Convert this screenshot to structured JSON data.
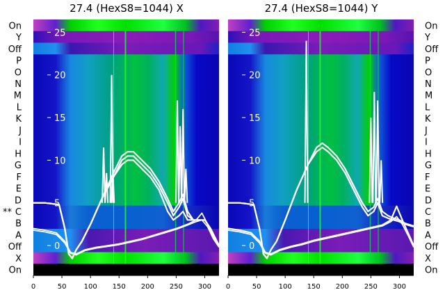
{
  "chart_data": [
    {
      "type": "heatmap",
      "title": "27.4 (HexS8=1044) X",
      "row_labels": [
        "On",
        "Y",
        "Off",
        "P",
        "O",
        "N",
        "M",
        "L",
        "K",
        "J",
        "I",
        "H",
        "G",
        "F",
        "E",
        "D",
        "C",
        "B",
        "A",
        "Off",
        "X",
        "On"
      ],
      "row_marker": {
        "row": "C",
        "text": "**"
      },
      "x_ticks": [
        0,
        50,
        100,
        150,
        200,
        250,
        300
      ],
      "xlim": [
        0,
        325
      ],
      "y_ticks": [
        25,
        20,
        15,
        10,
        5,
        0
      ],
      "ylim": [
        -3.5,
        26.5
      ],
      "series": [
        {
          "name": "",
          "x": [
            0,
            20,
            45,
            55,
            62,
            68,
            75,
            85,
            100,
            120,
            140,
            155,
            165,
            175,
            190,
            205,
            220,
            235,
            245,
            255,
            262,
            270,
            280,
            290,
            300,
            310,
            325
          ],
          "y": [
            5,
            5,
            4.8,
            2,
            -1,
            -1.5,
            -0.5,
            0.5,
            2.5,
            5.5,
            8,
            9.5,
            10,
            10,
            9,
            8,
            6.5,
            4,
            3,
            3.5,
            4,
            3,
            3,
            3,
            3,
            2,
            0
          ]
        },
        {
          "name": "",
          "x": [
            0,
            20,
            45,
            55,
            62,
            68,
            75,
            85,
            100,
            120,
            140,
            155,
            165,
            175,
            190,
            205,
            220,
            235,
            245,
            255,
            262,
            270,
            280,
            290,
            300,
            310,
            325
          ],
          "y": [
            5,
            5,
            4.8,
            2,
            -1,
            -1.5,
            -0.5,
            0.5,
            2.5,
            5.5,
            8,
            10,
            10.5,
            10.5,
            9.5,
            8.5,
            7,
            5,
            3.5,
            4.5,
            5.5,
            3.5,
            3,
            3,
            3,
            2,
            0
          ]
        },
        {
          "name": "",
          "x": [
            0,
            20,
            45,
            55,
            62,
            68,
            75,
            85,
            100,
            120,
            140,
            155,
            165,
            175,
            190,
            205,
            220,
            235,
            245,
            255,
            262,
            270,
            280,
            290,
            300,
            310,
            325
          ],
          "y": [
            5,
            5,
            4.8,
            2,
            -1,
            -1.5,
            -0.5,
            0.5,
            2.5,
            5.5,
            8.5,
            10.5,
            11,
            11,
            10,
            9,
            7.5,
            5.5,
            4,
            5,
            6,
            4,
            3,
            3,
            3,
            2,
            0
          ]
        },
        {
          "name": "",
          "x": [
            0,
            20,
            40,
            55,
            65,
            75,
            90,
            110,
            130,
            150,
            170,
            190,
            210,
            230,
            250,
            270,
            285,
            295,
            305,
            315,
            325
          ],
          "y": [
            2,
            1.8,
            1.5,
            0.5,
            -0.8,
            -1,
            -0.5,
            -0.2,
            0,
            0.2,
            0.5,
            0.8,
            1.2,
            1.6,
            2,
            2.5,
            3,
            3.8,
            2.5,
            1,
            0
          ]
        },
        {
          "name": "",
          "x": [
            0,
            20,
            40,
            55,
            65,
            75,
            90,
            110,
            130,
            150,
            170,
            190,
            210,
            230,
            250,
            270,
            285,
            295,
            305,
            315,
            325
          ],
          "y": [
            1.8,
            1.6,
            1.3,
            0.3,
            -0.9,
            -1.1,
            -0.6,
            -0.3,
            -0.1,
            0.1,
            0.4,
            0.7,
            1.1,
            1.5,
            1.9,
            2.4,
            2.8,
            3,
            2.2,
            0.8,
            -0.2
          ]
        }
      ],
      "spikes": [
        {
          "x": 123,
          "y": 11.5
        },
        {
          "x": 128,
          "y": 8.5
        },
        {
          "x": 137,
          "y": 20
        },
        {
          "x": 139,
          "y": 9
        },
        {
          "x": 252,
          "y": 17
        },
        {
          "x": 257,
          "y": 14
        },
        {
          "x": 262,
          "y": 16
        },
        {
          "x": 267,
          "y": 9
        }
      ]
    },
    {
      "type": "heatmap",
      "title": "27.4 (HexS8=1044) Y",
      "row_labels": [
        "On",
        "Y",
        "Off",
        "P",
        "O",
        "N",
        "M",
        "L",
        "K",
        "J",
        "I",
        "H",
        "G",
        "F",
        "E",
        "D",
        "C",
        "B",
        "A",
        "Off",
        "X",
        "On"
      ],
      "x_ticks": [
        0,
        50,
        100,
        150,
        200,
        250,
        300
      ],
      "xlim": [
        0,
        325
      ],
      "y_ticks": [
        25,
        20,
        15,
        10,
        5,
        0
      ],
      "ylim": [
        -3.5,
        26.5
      ],
      "series": [
        {
          "name": "",
          "x": [
            0,
            20,
            45,
            55,
            62,
            68,
            75,
            85,
            100,
            120,
            140,
            155,
            165,
            175,
            190,
            205,
            220,
            235,
            245,
            255,
            262,
            270,
            280,
            290,
            300,
            310,
            325
          ],
          "y": [
            5,
            5,
            4.8,
            2,
            -1,
            -1.5,
            -0.5,
            0.5,
            3,
            6.5,
            9.5,
            11,
            11.5,
            11,
            10,
            8.5,
            6.5,
            4.5,
            3.5,
            4,
            5,
            3.5,
            3.2,
            3,
            2.8,
            2.5,
            2.2
          ]
        },
        {
          "name": "",
          "x": [
            0,
            20,
            45,
            55,
            62,
            68,
            75,
            85,
            100,
            120,
            140,
            155,
            165,
            175,
            190,
            205,
            220,
            235,
            245,
            255,
            262,
            270,
            280,
            290,
            300,
            310,
            325
          ],
          "y": [
            5,
            5,
            4.8,
            2,
            -1,
            -1.5,
            -0.5,
            0.5,
            3,
            6.5,
            9.5,
            11.5,
            12,
            11.5,
            10.5,
            9,
            7,
            5,
            4,
            4.5,
            5.5,
            4,
            3.5,
            3.2,
            3,
            2.6,
            2.3
          ]
        },
        {
          "name": "",
          "x": [
            0,
            20,
            40,
            55,
            65,
            75,
            90,
            110,
            130,
            150,
            170,
            190,
            210,
            230,
            250,
            270,
            285,
            295,
            305,
            315,
            325
          ],
          "y": [
            2,
            1.8,
            1.5,
            0.5,
            -0.8,
            -1,
            -0.5,
            -0.1,
            0.2,
            0.6,
            0.9,
            1.2,
            1.5,
            1.8,
            2.1,
            2.4,
            3,
            4.6,
            3,
            1.5,
            0
          ]
        },
        {
          "name": "",
          "x": [
            0,
            20,
            40,
            55,
            65,
            75,
            90,
            110,
            130,
            150,
            170,
            190,
            210,
            230,
            250,
            270,
            285,
            295,
            305,
            315,
            325
          ],
          "y": [
            1.8,
            1.6,
            1.3,
            0.3,
            -0.9,
            -1.1,
            -0.6,
            -0.2,
            0.1,
            0.5,
            0.8,
            1.1,
            1.4,
            1.7,
            2,
            2.3,
            2.8,
            3.4,
            2.5,
            1.2,
            -0.2
          ]
        }
      ],
      "spikes": [
        {
          "x": 137,
          "y": 24
        },
        {
          "x": 250,
          "y": 15
        },
        {
          "x": 256,
          "y": 18
        },
        {
          "x": 262,
          "y": 17
        },
        {
          "x": 268,
          "y": 10
        }
      ]
    }
  ]
}
